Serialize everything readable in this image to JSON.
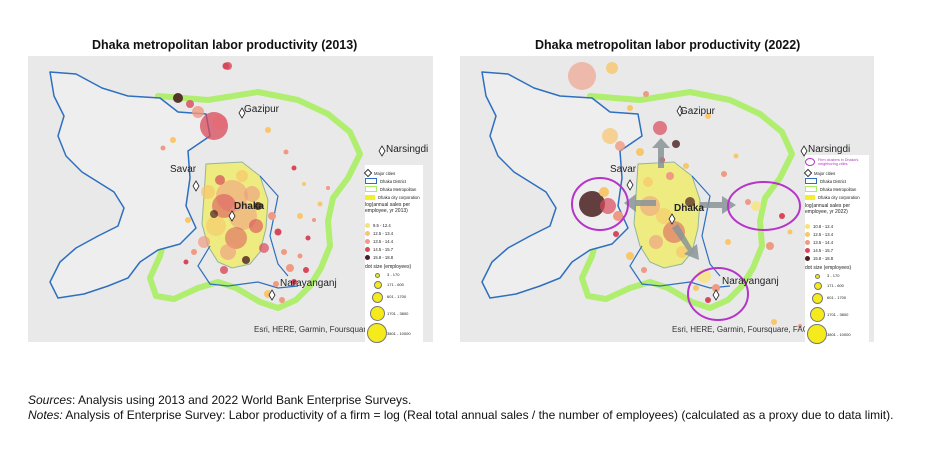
{
  "figure": {
    "left": {
      "title": "Dhaka metropolitan labor productivity (2013)",
      "cities": {
        "gazipur": "Gazipur",
        "narsingdi": "Narsingdi",
        "savar": "Savar",
        "dhaka": "Dhaka",
        "narayanganj": "Narayanganj"
      },
      "attribution": "Esri, HERE, Garmin, Foursquare, FAO, M",
      "legend": {
        "major_cities": "Major cities",
        "dhaka_district": "Dhaka District",
        "dhaka_metro": "Dhaka Metropolitan",
        "dhaka_city_corp": "Dhaka city corporation",
        "color_heading": "log(annual sales per employee, yr 2013)",
        "classes": [
          "9.5 - 12.4",
          "12.5 - 13.4",
          "13.5 - 14.4",
          "14.5 - 15.7",
          "15.8 - 18.8"
        ],
        "size_heading": "dot size (employees)",
        "sizes": [
          "3 - 170",
          "171 - 600",
          "601 - 1700",
          "1701 - 3800",
          "3801 - 10000"
        ]
      }
    },
    "right": {
      "title": "Dhaka metropolitan labor productivity (2022)",
      "cities": {
        "gazipur": "Gazipur",
        "narsingdi": "Narsingdi",
        "savar": "Savar",
        "dhaka": "Dhaka",
        "narayanganj": "Narayanganj"
      },
      "attribution": "Esri, HERE, Garmin, Foursquare, FAO, MI",
      "legend": {
        "firm_clusters": "Firm clusters in Dhaka's neighboring cities",
        "major_cities": "Major cities",
        "dhaka_district": "Dhaka District",
        "dhaka_metro": "Dhaka Metropolitan",
        "dhaka_city_corp": "Dhaka city corporation",
        "color_heading": "log(annual sales per employee, yr 2022)",
        "classes": [
          "10.8 - 12.4",
          "12.5 - 13.4",
          "13.5 - 14.4",
          "14.5 - 15.7",
          "15.8 - 18.8"
        ],
        "size_heading": "dot size (employees)",
        "sizes": [
          "3 - 170",
          "171 - 600",
          "601 - 1700",
          "1701 - 3800",
          "3801 - 10000"
        ]
      }
    },
    "class_colors": [
      "#f7e27a",
      "#f8c66c",
      "#ef9a82",
      "#d9485a",
      "#4a1e20"
    ],
    "size_color": "#f5ea1b",
    "cluster_color": "#b535c8",
    "metro_color": "#a8ee62",
    "district_color": "#2e6fbf",
    "city_corp_color": "#f3ef2c"
  },
  "notes": {
    "sources_label": "Sources",
    "sources_text": ": Analysis using 2013 and 2022 World Bank Enterprise Surveys.",
    "notes_label": "Notes:",
    "notes_text": " Analysis of Enterprise Survey: Labor productivity of a firm = log (Real total annual sales / the number of employees) (calculated as a proxy due to data limit)."
  }
}
